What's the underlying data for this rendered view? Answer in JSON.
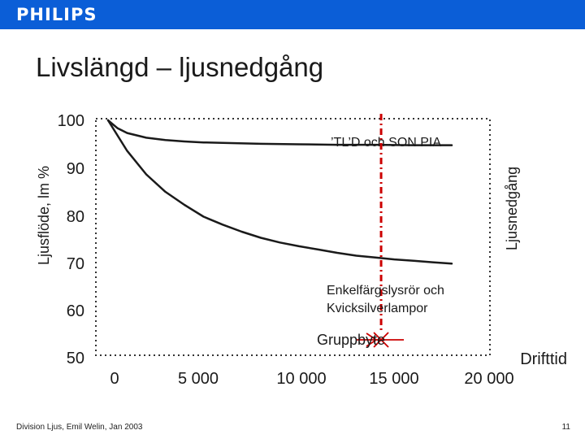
{
  "header": {
    "brand": "PHILIPS"
  },
  "slide": {
    "title": "Livslängd – ljusnedgång"
  },
  "chart_data": {
    "type": "line",
    "ylabel": "Ljusflöde, lm %",
    "xlabel": "Drifttid",
    "y_ticks": [
      "100",
      "90",
      "80",
      "70",
      "60",
      "50"
    ],
    "y_tick_values": [
      100,
      90,
      80,
      70,
      60,
      50
    ],
    "x_ticks": [
      "0",
      "5 000",
      "10 000",
      "15 000",
      "20 000"
    ],
    "x_tick_values": [
      0,
      5000,
      10000,
      15000,
      20000
    ],
    "xlim": [
      0,
      20000
    ],
    "ylim": [
      50,
      100
    ],
    "grid": false,
    "series": [
      {
        "name": "’TL’D och SON PIA",
        "color": "#1a1a1a",
        "x": [
          0,
          500,
          1000,
          2000,
          3000,
          4000,
          5000,
          6000,
          8000,
          10000,
          12000,
          14000,
          16000,
          18000
        ],
        "y": [
          100,
          98.3,
          97.3,
          96.3,
          95.8,
          95.5,
          95.3,
          95.2,
          95.0,
          94.9,
          94.8,
          94.8,
          94.7,
          94.7
        ]
      },
      {
        "name": "Enkelfärgslysrör och Kvicksilverlampor",
        "color": "#1a1a1a",
        "x": [
          0,
          1000,
          2000,
          3000,
          4000,
          5000,
          6000,
          7000,
          8000,
          9000,
          10000,
          11000,
          12000,
          13000,
          14000,
          15000,
          16000,
          17000,
          18000
        ],
        "y": [
          100,
          93.5,
          88.5,
          84.8,
          82.0,
          79.5,
          77.8,
          76.3,
          75.0,
          74.0,
          73.2,
          72.5,
          71.8,
          71.2,
          70.8,
          70.4,
          70.1,
          69.8,
          69.5
        ]
      }
    ],
    "marker": {
      "label": "Gruppbyte",
      "x": 14300,
      "line_color": "#cc0000",
      "symbol": "crossed-arrow"
    },
    "annotations": {
      "right_label": "Ljusnedgång"
    }
  },
  "footer": {
    "text": "Division Ljus, Emil Welin, Jan 2003",
    "page": "11"
  }
}
